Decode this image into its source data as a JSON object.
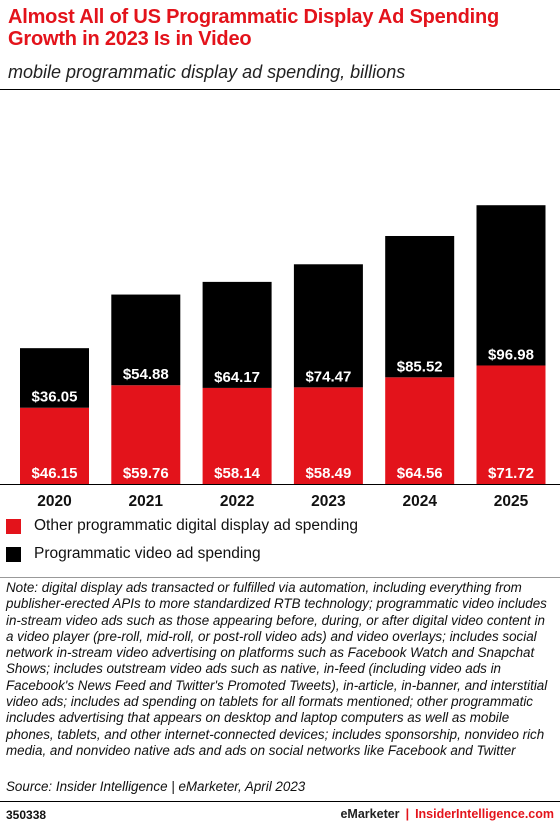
{
  "title": "Almost All of US Programmatic Display Ad Spending Growth in 2023 Is in Video",
  "subtitle": "mobile programmatic display ad spending, billions",
  "legend": [
    {
      "label": "Other programmatic digital display ad spending",
      "color": "#e3131b"
    },
    {
      "label": "Programmatic video ad spending",
      "color": "#000000"
    }
  ],
  "note": "Note: digital display ads transacted or fulfilled via automation, including everything from publisher-erected APIs to more standardized RTB technology; programmatic video includes in-stream video ads such as those appearing before, during, or after digital video content in a video player (pre-roll, mid-roll, or post-roll video ads) and video overlays; includes social network in-stream video advertising on platforms such as Facebook Watch and Snapchat Shows; includes outstream video ads such as native, in-feed (including video ads in Facebook's News Feed and Twitter's Promoted Tweets), in-article, in-banner, and interstitial video ads; includes ad spending on tablets for all formats mentioned; other programmatic includes advertising that appears on desktop and laptop computers as well as mobile phones, tablets, and other internet-connected devices; includes sponsorship, nonvideo rich media, and nonvideo native ads and ads on social networks like Facebook and Twitter",
  "source": "Source: Insider Intelligence | eMarketer, April 2023",
  "chart_id": "350338",
  "brand": {
    "emarketer": "eMarketer",
    "separator": "|",
    "insider": "InsiderIntelligence.com"
  },
  "chart_data": {
    "type": "bar",
    "stacked": true,
    "categories": [
      "2020",
      "2021",
      "2022",
      "2023",
      "2024",
      "2025"
    ],
    "series": [
      {
        "name": "Other programmatic digital display ad spending",
        "color": "#e3131b",
        "values": [
          46.15,
          59.76,
          58.14,
          58.49,
          64.56,
          71.72
        ],
        "labels": [
          "$46.15",
          "$59.76",
          "$58.14",
          "$58.49",
          "$64.56",
          "$71.72"
        ]
      },
      {
        "name": "Programmatic video ad spending",
        "color": "#000000",
        "values": [
          36.05,
          54.88,
          64.17,
          74.47,
          85.52,
          96.98
        ],
        "labels": [
          "$36.05",
          "$54.88",
          "$64.17",
          "$74.47",
          "$85.52",
          "$96.98"
        ]
      }
    ],
    "grid": false,
    "legend_position": "bottom"
  }
}
